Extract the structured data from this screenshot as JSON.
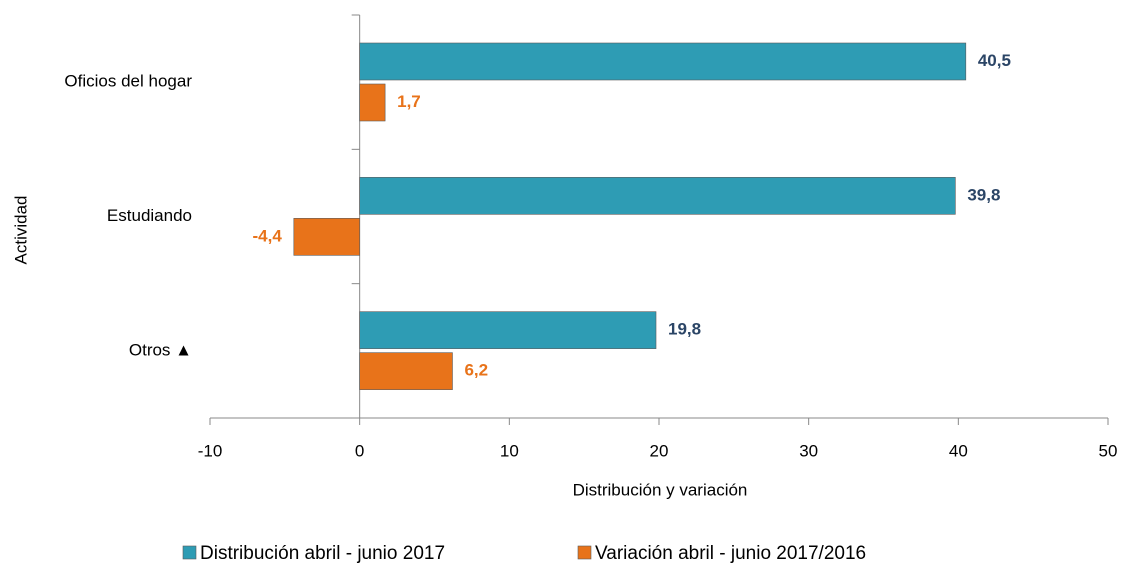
{
  "chart_data": {
    "type": "hbar",
    "categories": [
      "Oficios del hogar",
      "Estudiando",
      "Otros ▲"
    ],
    "series": [
      {
        "name": "Distribución abril - junio 2017",
        "color": "#2e9cb4",
        "label_color": "#2b4566",
        "values": [
          40.5,
          39.8,
          19.8
        ],
        "value_labels": [
          "40,5",
          "39,8",
          "19,8"
        ]
      },
      {
        "name": "Variación abril - junio 2017/2016",
        "color": "#e8731a",
        "label_color": "#e8731a",
        "values": [
          1.7,
          -4.4,
          6.2
        ],
        "value_labels": [
          "1,7",
          "-4,4",
          "6,2"
        ]
      }
    ],
    "xlim": [
      -10,
      50
    ],
    "xticks": [
      -10,
      0,
      10,
      20,
      30,
      40,
      50
    ],
    "xlabel": "Distribución y variación",
    "ylabel": "Actividad",
    "legend": "bottom"
  }
}
